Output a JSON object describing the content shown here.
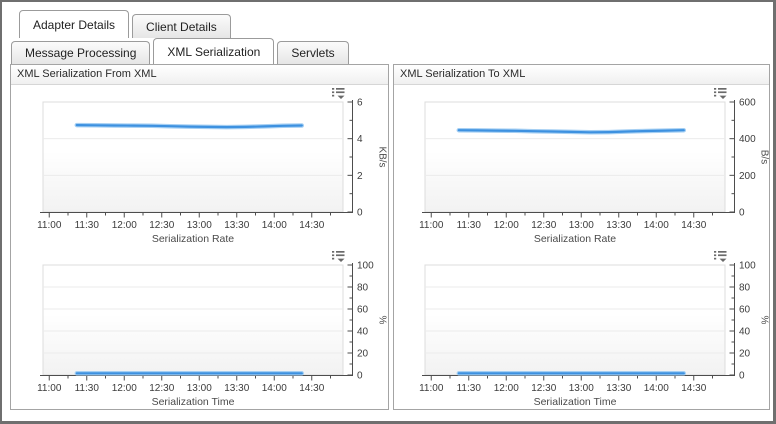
{
  "tabs": {
    "primary": [
      {
        "label": "Adapter Details",
        "active": true
      },
      {
        "label": "Client Details",
        "active": false
      }
    ],
    "secondary": [
      {
        "label": "Message Processing",
        "active": false
      },
      {
        "label": "XML Serialization",
        "active": true
      },
      {
        "label": "Servlets",
        "active": false
      }
    ]
  },
  "panels": [
    {
      "title": "XML Serialization From XML"
    },
    {
      "title": "XML Serialization To XML"
    }
  ],
  "icons": {
    "chart_menu": "legend-menu-icon"
  },
  "colors": {
    "series_line": "#3d91e0",
    "series_halo": "#a5cff3",
    "axis": "#4d4d4d",
    "tick_label": "#3c3c3c",
    "axis_title": "#4a4a4a",
    "gridline": "#ebebeb",
    "plot_border": "#dcdcdc",
    "plot_fill_top": "#ffffff",
    "plot_fill_bottom": "#f2f2f2",
    "icon": "#6a6a6a"
  },
  "chart_data": [
    {
      "type": "line",
      "panel": 0,
      "xlabel": "Serialization Rate",
      "ylabel": "KB/s",
      "ylim": [
        0,
        6
      ],
      "yticks": [
        0,
        2,
        4,
        6
      ],
      "yminor": [
        1,
        3,
        5
      ],
      "xlim_minutes": [
        -5,
        235
      ],
      "xticks": [
        {
          "m": 0,
          "label": "11:00"
        },
        {
          "m": 30,
          "label": "11:30"
        },
        {
          "m": 60,
          "label": "12:00"
        },
        {
          "m": 90,
          "label": "12:30"
        },
        {
          "m": 120,
          "label": "13:00"
        },
        {
          "m": 150,
          "label": "13:30"
        },
        {
          "m": 180,
          "label": "14:00"
        },
        {
          "m": 210,
          "label": "14:30"
        }
      ],
      "xminor": [
        15,
        45,
        75,
        105,
        135,
        165,
        195,
        225
      ],
      "legend_position": "hidden-menu-top-right",
      "grid": true,
      "series": [
        {
          "name": "serialization-rate-from-xml",
          "points": [
            [
              22,
              4.74
            ],
            [
              37,
              4.73
            ],
            [
              52,
              4.72
            ],
            [
              67,
              4.71
            ],
            [
              82,
              4.7
            ],
            [
              97,
              4.68
            ],
            [
              112,
              4.66
            ],
            [
              127,
              4.64
            ],
            [
              142,
              4.63
            ],
            [
              157,
              4.64
            ],
            [
              172,
              4.67
            ],
            [
              187,
              4.7
            ],
            [
              202,
              4.72
            ]
          ]
        }
      ]
    },
    {
      "type": "line",
      "panel": 0,
      "xlabel": "Serialization Time",
      "ylabel": "%",
      "ylim": [
        0,
        100
      ],
      "yticks": [
        0,
        20,
        40,
        60,
        80,
        100
      ],
      "yminor": [
        10,
        30,
        50,
        70,
        90
      ],
      "xlim_minutes": [
        -5,
        235
      ],
      "xticks": [
        {
          "m": 0,
          "label": "11:00"
        },
        {
          "m": 30,
          "label": "11:30"
        },
        {
          "m": 60,
          "label": "12:00"
        },
        {
          "m": 90,
          "label": "12:30"
        },
        {
          "m": 120,
          "label": "13:00"
        },
        {
          "m": 150,
          "label": "13:30"
        },
        {
          "m": 180,
          "label": "14:00"
        },
        {
          "m": 210,
          "label": "14:30"
        }
      ],
      "xminor": [
        15,
        45,
        75,
        105,
        135,
        165,
        195,
        225
      ],
      "legend_position": "hidden-menu-top-right",
      "grid": true,
      "series": [
        {
          "name": "serialization-time-from-xml",
          "points": [
            [
              22,
              1.5
            ],
            [
              37,
              1.5
            ],
            [
              52,
              1.5
            ],
            [
              67,
              1.5
            ],
            [
              82,
              1.5
            ],
            [
              97,
              1.5
            ],
            [
              112,
              1.5
            ],
            [
              127,
              1.5
            ],
            [
              142,
              1.5
            ],
            [
              157,
              1.5
            ],
            [
              172,
              1.5
            ],
            [
              187,
              1.5
            ],
            [
              202,
              1.5
            ]
          ]
        }
      ]
    },
    {
      "type": "line",
      "panel": 1,
      "xlabel": "Serialization Rate",
      "ylabel": "B/s",
      "ylim": [
        0,
        600
      ],
      "yticks": [
        0,
        200,
        400,
        600
      ],
      "yminor": [
        100,
        300,
        500
      ],
      "xlim_minutes": [
        -5,
        235
      ],
      "xticks": [
        {
          "m": 0,
          "label": "11:00"
        },
        {
          "m": 30,
          "label": "11:30"
        },
        {
          "m": 60,
          "label": "12:00"
        },
        {
          "m": 90,
          "label": "12:30"
        },
        {
          "m": 120,
          "label": "13:00"
        },
        {
          "m": 150,
          "label": "13:30"
        },
        {
          "m": 180,
          "label": "14:00"
        },
        {
          "m": 210,
          "label": "14:30"
        }
      ],
      "xminor": [
        15,
        45,
        75,
        105,
        135,
        165,
        195,
        225
      ],
      "legend_position": "hidden-menu-top-right",
      "grid": true,
      "series": [
        {
          "name": "serialization-rate-to-xml",
          "points": [
            [
              22,
              446
            ],
            [
              37,
              445
            ],
            [
              52,
              444
            ],
            [
              67,
              443
            ],
            [
              82,
              441
            ],
            [
              97,
              439
            ],
            [
              112,
              437
            ],
            [
              127,
              435
            ],
            [
              142,
              436
            ],
            [
              157,
              439
            ],
            [
              172,
              442
            ],
            [
              187,
              444
            ],
            [
              202,
              446
            ]
          ]
        }
      ]
    },
    {
      "type": "line",
      "panel": 1,
      "xlabel": "Serialization Time",
      "ylabel": "%",
      "ylim": [
        0,
        100
      ],
      "yticks": [
        0,
        20,
        40,
        60,
        80,
        100
      ],
      "yminor": [
        10,
        30,
        50,
        70,
        90
      ],
      "xlim_minutes": [
        -5,
        235
      ],
      "xticks": [
        {
          "m": 0,
          "label": "11:00"
        },
        {
          "m": 30,
          "label": "11:30"
        },
        {
          "m": 60,
          "label": "12:00"
        },
        {
          "m": 90,
          "label": "12:30"
        },
        {
          "m": 120,
          "label": "13:00"
        },
        {
          "m": 150,
          "label": "13:30"
        },
        {
          "m": 180,
          "label": "14:00"
        },
        {
          "m": 210,
          "label": "14:30"
        }
      ],
      "xminor": [
        15,
        45,
        75,
        105,
        135,
        165,
        195,
        225
      ],
      "legend_position": "hidden-menu-top-right",
      "grid": true,
      "series": [
        {
          "name": "serialization-time-to-xml",
          "points": [
            [
              22,
              1.5
            ],
            [
              37,
              1.5
            ],
            [
              52,
              1.5
            ],
            [
              67,
              1.5
            ],
            [
              82,
              1.5
            ],
            [
              97,
              1.5
            ],
            [
              112,
              1.5
            ],
            [
              127,
              1.5
            ],
            [
              142,
              1.5
            ],
            [
              157,
              1.5
            ],
            [
              172,
              1.5
            ],
            [
              187,
              1.5
            ],
            [
              202,
              1.5
            ]
          ]
        }
      ]
    }
  ]
}
